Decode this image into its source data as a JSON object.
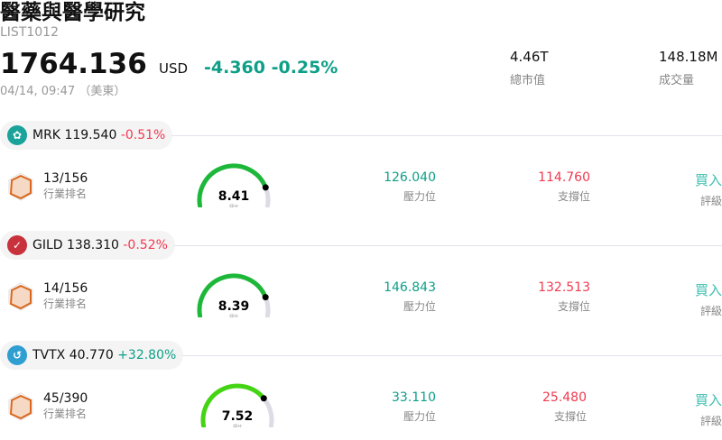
{
  "header": {
    "title": "醫藥與醫學研究",
    "code": "LIST1012",
    "price": "1764.136",
    "currency": "USD",
    "change": "-4.360",
    "change_pct": "-0.25%",
    "time": "04/14, 09:47 （美東）"
  },
  "stats": [
    {
      "value": "4.46T",
      "label": "總市值"
    },
    {
      "value": "148.18M",
      "label": "成交量"
    }
  ],
  "colors": {
    "down_teal": "#0e9f87",
    "up_red": "#f03a4f",
    "rating": "#3cc0b0"
  },
  "stocks": [
    {
      "ticker": "MRK",
      "price": "119.540",
      "change_pct": "-0.51%",
      "dir": "dn",
      "icon": "merck-logo-icon",
      "icon_color": "#1aa39a",
      "rank": "13/156",
      "rank_label": "行業排名",
      "score": 8.41,
      "score_text": "8.41",
      "score_label": "評分",
      "gauge_color": "#1db83a",
      "resistance": "126.040",
      "resistance_label": "壓力位",
      "support": "114.760",
      "support_label": "支撐位",
      "rating": "買入",
      "rating_label": "評級"
    },
    {
      "ticker": "GILD",
      "price": "138.310",
      "change_pct": "-0.52%",
      "dir": "dn",
      "icon": "gilead-logo-icon",
      "icon_color": "#c8323c",
      "rank": "14/156",
      "rank_label": "行業排名",
      "score": 8.39,
      "score_text": "8.39",
      "score_label": "評分",
      "gauge_color": "#1db83a",
      "resistance": "146.843",
      "resistance_label": "壓力位",
      "support": "132.513",
      "support_label": "支撐位",
      "rating": "買入",
      "rating_label": "評級"
    },
    {
      "ticker": "TVTX",
      "price": "40.770",
      "change_pct": "+32.80%",
      "dir": "up",
      "icon": "travere-logo-icon",
      "icon_color": "#2f9ed0",
      "rank": "45/390",
      "rank_label": "行業排名",
      "score": 7.52,
      "score_text": "7.52",
      "score_label": "評分",
      "gauge_color": "#44d414",
      "resistance": "33.110",
      "resistance_label": "壓力位",
      "support": "25.480",
      "support_label": "支撐位",
      "rating": "買入",
      "rating_label": "評級"
    }
  ]
}
